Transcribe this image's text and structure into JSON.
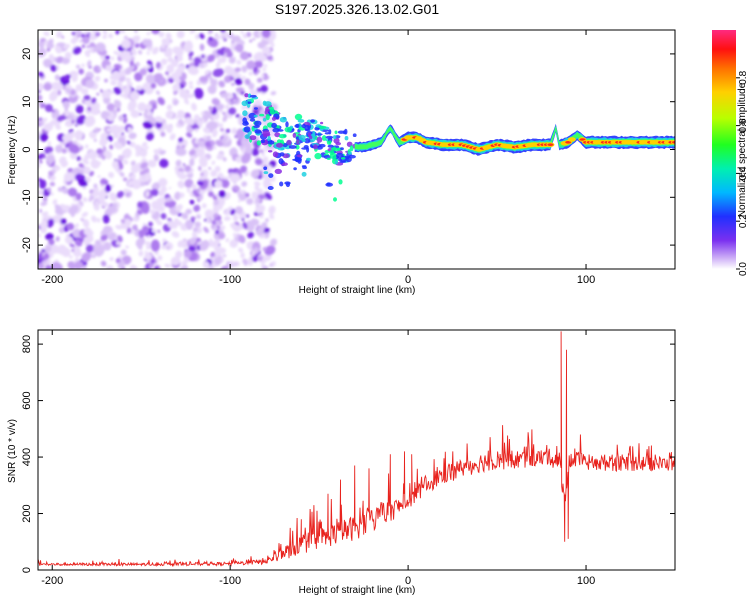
{
  "figure": {
    "title": "S197.2025.326.13.02.G01"
  },
  "colors": {
    "snr_line": "#e8231e",
    "trace": "#8a2be2",
    "signal_core": "#ff2a1a",
    "signal_mid": "#ffd000",
    "signal_edge": "#1fd0e0",
    "signal_outer": "#2030ff",
    "colorbar_stops": [
      "#a46cf0",
      "#6020ff",
      "#2040ff",
      "#00c0ff",
      "#00ff90",
      "#30ff00",
      "#c8ff00",
      "#ffd000",
      "#ff7000",
      "#ff1010",
      "#ff2080"
    ]
  },
  "chart_data": [
    {
      "type": "heatmap",
      "name": "spectrogram",
      "xlabel": "Height of straight line (km)",
      "ylabel": "Frequency (Hz)",
      "xlim": [
        -208,
        150
      ],
      "ylim": [
        -25,
        25
      ],
      "xticks": [
        -200,
        -100,
        0,
        100
      ],
      "xtick_labels": [
        "-200",
        "-100",
        "0",
        "100"
      ],
      "yticks": [
        -20,
        -10,
        0,
        10,
        20
      ],
      "ytick_labels": [
        "-20",
        "-10",
        "0",
        "10",
        "20"
      ],
      "noise_region_x": [
        -208,
        -79
      ],
      "signal_ridge": {
        "x": [
          -90,
          -85,
          -80,
          -75,
          -70,
          -65,
          -60,
          -55,
          -50,
          -45,
          -40,
          -35,
          -30,
          -25,
          -20,
          -15,
          -12,
          -10,
          -5,
          0,
          5,
          10,
          20,
          30,
          40,
          50,
          60,
          70,
          80,
          83,
          85,
          90,
          95,
          100,
          110,
          120,
          130,
          140,
          150
        ],
        "freq": [
          7.0,
          6.0,
          5.0,
          3.5,
          2.0,
          1.0,
          2.5,
          3.0,
          2.5,
          1.0,
          0.0,
          1.0,
          0.5,
          0.5,
          1.0,
          1.5,
          3.5,
          4.5,
          1.5,
          2.5,
          2.5,
          1.5,
          1.0,
          1.0,
          0.0,
          1.0,
          0.5,
          1.0,
          1.0,
          4.5,
          1.0,
          1.5,
          3.0,
          1.5,
          1.5,
          1.5,
          1.5,
          1.5,
          1.5
        ],
        "amp": [
          0.25,
          0.3,
          0.35,
          0.4,
          0.45,
          0.45,
          0.45,
          0.5,
          0.5,
          0.55,
          0.6,
          0.65,
          0.65,
          0.7,
          0.7,
          0.65,
          0.5,
          0.5,
          0.75,
          0.85,
          0.85,
          0.9,
          0.95,
          0.9,
          0.95,
          0.9,
          0.95,
          0.95,
          0.9,
          0.55,
          0.7,
          0.9,
          0.7,
          0.95,
          0.95,
          0.95,
          0.95,
          0.95,
          0.95
        ]
      }
    },
    {
      "type": "colorbar",
      "name": "amplitude-colorbar",
      "label": "Normalized spectral amplitude",
      "range": [
        0.0,
        1.0
      ],
      "ticks": [
        0.0,
        0.2,
        0.4,
        0.6,
        0.8
      ],
      "tick_labels": [
        "0.0",
        "0.2",
        "0.4",
        "0.6",
        "0.8"
      ]
    },
    {
      "type": "line",
      "name": "snr",
      "xlabel": "Height of straight line (km)",
      "ylabel": "SNR (10 * v/v)",
      "xlim": [
        -208,
        150
      ],
      "ylim": [
        0,
        850
      ],
      "xticks": [
        -200,
        -100,
        0,
        100
      ],
      "xtick_labels": [
        "-200",
        "-100",
        "0",
        "100"
      ],
      "yticks": [
        0,
        200,
        400,
        600,
        800
      ],
      "ytick_labels": [
        "0",
        "200",
        "400",
        "600",
        "800"
      ],
      "envelope": {
        "x": [
          -208,
          -150,
          -100,
          -80,
          -70,
          -60,
          -50,
          -40,
          -30,
          -20,
          -10,
          0,
          10,
          20,
          30,
          40,
          50,
          60,
          70,
          80,
          85,
          88,
          90,
          95,
          100,
          120,
          150
        ],
        "base": [
          20,
          20,
          22,
          30,
          60,
          90,
          110,
          130,
          150,
          180,
          210,
          240,
          300,
          340,
          360,
          380,
          390,
          390,
          395,
          400,
          380,
          250,
          350,
          390,
          380,
          380,
          375
        ],
        "noise": [
          10,
          10,
          12,
          20,
          50,
          70,
          80,
          80,
          90,
          90,
          80,
          50,
          60,
          70,
          70,
          70,
          70,
          70,
          60,
          60,
          80,
          60,
          60,
          60,
          60,
          60,
          50
        ]
      },
      "spikes": [
        {
          "x": -60,
          "y": 180
        },
        {
          "x": -55,
          "y": 210
        },
        {
          "x": -45,
          "y": 270
        },
        {
          "x": -38,
          "y": 320
        },
        {
          "x": -30,
          "y": 370
        },
        {
          "x": -22,
          "y": 360
        },
        {
          "x": -10,
          "y": 410
        },
        {
          "x": -2,
          "y": 420
        },
        {
          "x": 2,
          "y": 410
        },
        {
          "x": 86,
          "y": 845
        },
        {
          "x": 88,
          "y": 100
        },
        {
          "x": 89,
          "y": 780
        },
        {
          "x": 90,
          "y": 110
        }
      ]
    }
  ]
}
